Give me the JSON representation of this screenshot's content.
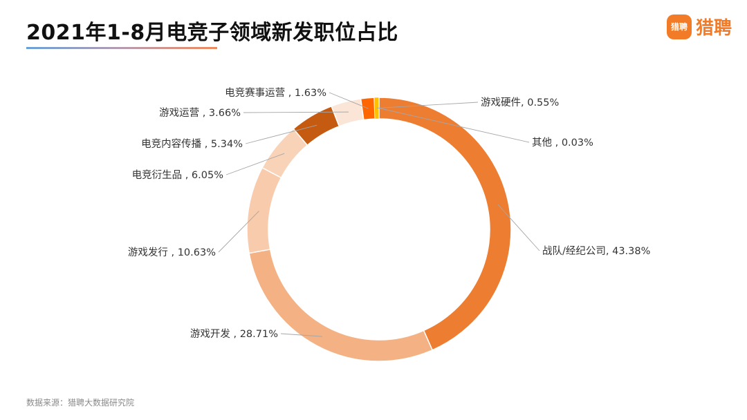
{
  "header": {
    "title": "2021年1-8月电竞子领域新发职位占比"
  },
  "brand": {
    "badge_text": "猎聘",
    "name": "猎聘",
    "color": "#f27b28"
  },
  "footer": {
    "source": "数据来源：猎聘大数据研究院"
  },
  "chart_data": {
    "type": "pie",
    "donut": true,
    "title": "2021年1-8月电竞子领域新发职位占比",
    "slices": [
      {
        "label": "战队/经纪公司",
        "value": 43.38,
        "display": "战队/经纪公司, 43.38%",
        "color": "#ed7d31"
      },
      {
        "label": "游戏开发",
        "value": 28.71,
        "display": "游戏开发 , 28.71%",
        "color": "#f4b183"
      },
      {
        "label": "游戏发行",
        "value": 10.63,
        "display": "游戏发行 , 10.63%",
        "color": "#f8cbad"
      },
      {
        "label": "电竞衍生品",
        "value": 6.05,
        "display": "电竞衍生品 , 6.05%",
        "color": "#f9d3b8"
      },
      {
        "label": "电竞内容传播",
        "value": 5.34,
        "display": "电竞内容传播 , 5.34%",
        "color": "#c55a11"
      },
      {
        "label": "游戏运营",
        "value": 3.66,
        "display": "游戏运营 , 3.66%",
        "color": "#fbe5d6"
      },
      {
        "label": "电竞赛事运营",
        "value": 1.63,
        "display": "电竞赛事运营 , 1.63%",
        "color": "#ff6600"
      },
      {
        "label": "游戏硬件",
        "value": 0.55,
        "display": "游戏硬件, 0.55%",
        "color": "#ffc000"
      },
      {
        "label": "其他",
        "value": 0.03,
        "display": "其他 , 0.03%",
        "color": "#ffd966"
      }
    ]
  }
}
